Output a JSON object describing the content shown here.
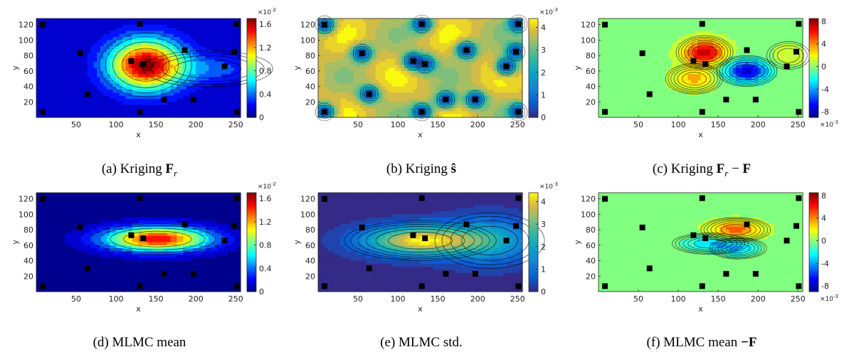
{
  "chart_data": [
    {
      "type": "heatmap",
      "id": "a",
      "caption_parts": [
        "(a) Kriging ",
        "F",
        "r",
        ""
      ],
      "xlabel": "x",
      "ylabel": "y",
      "xticks": [
        50,
        100,
        150,
        200,
        250
      ],
      "yticks": [
        20,
        40,
        60,
        80,
        100,
        120
      ],
      "xlim": [
        0,
        256
      ],
      "ylim": [
        0,
        128
      ],
      "colormap": "jet",
      "colorbar": {
        "ticks": [
          "0",
          "0.4",
          "0.8",
          "1.2",
          "1.6"
        ],
        "tick_values": [
          0,
          0.4,
          0.8,
          1.2,
          1.6
        ],
        "range": [
          0,
          1.7
        ],
        "exponent": "×10",
        "exponent_power": "-2"
      },
      "field": {
        "base": 0.08,
        "blobs": [
          {
            "x": 137,
            "y": 68,
            "sx": 32,
            "sy": 23,
            "a": 1.58
          },
          {
            "x": 215,
            "y": 63,
            "sx": 45,
            "sy": 13,
            "a": 0.28
          }
        ]
      },
      "markers": [
        [
          8,
          120
        ],
        [
          130,
          121
        ],
        [
          251,
          121
        ],
        [
          55,
          83
        ],
        [
          119,
          73
        ],
        [
          134,
          69
        ],
        [
          186,
          87
        ],
        [
          248,
          85
        ],
        [
          236,
          66
        ],
        [
          64,
          30
        ],
        [
          160,
          23
        ],
        [
          197,
          23
        ],
        [
          8,
          7
        ],
        [
          130,
          7
        ],
        [
          251,
          7
        ]
      ]
    },
    {
      "type": "heatmap",
      "id": "b",
      "caption_parts": [
        "(b) Kriging ",
        "ŝ",
        "",
        ""
      ],
      "xlabel": "x",
      "ylabel": "y",
      "xticks": [
        50,
        100,
        150,
        200,
        250
      ],
      "yticks": [
        20,
        40,
        60,
        80,
        100,
        120
      ],
      "xlim": [
        0,
        256
      ],
      "ylim": [
        0,
        128
      ],
      "colormap": "parula",
      "colorbar": {
        "ticks": [
          "0",
          "1",
          "2",
          "3",
          "4"
        ],
        "tick_values": [
          0,
          1,
          2,
          3,
          4
        ],
        "range": [
          0,
          4.4
        ],
        "exponent": "×10",
        "exponent_power": "-3"
      },
      "field": {
        "base": 3.6,
        "kriging": true
      },
      "markers": [
        [
          8,
          120
        ],
        [
          130,
          121
        ],
        [
          251,
          121
        ],
        [
          55,
          83
        ],
        [
          119,
          73
        ],
        [
          134,
          69
        ],
        [
          186,
          87
        ],
        [
          248,
          85
        ],
        [
          236,
          66
        ],
        [
          64,
          30
        ],
        [
          160,
          23
        ],
        [
          197,
          23
        ],
        [
          8,
          7
        ],
        [
          130,
          7
        ],
        [
          251,
          7
        ]
      ]
    },
    {
      "type": "heatmap",
      "id": "c",
      "caption_parts": [
        "(c) Kriging ",
        "F",
        "r",
        " − F"
      ],
      "xlabel": "x",
      "ylabel": "y",
      "xticks": [
        50,
        100,
        150,
        200,
        250
      ],
      "yticks": [
        20,
        40,
        60,
        80,
        100,
        120
      ],
      "xlim": [
        0,
        256
      ],
      "ylim": [
        0,
        128
      ],
      "colormap": "jet",
      "colorbar": {
        "ticks": [
          "8",
          "4",
          "0",
          "-4",
          "-8"
        ],
        "tick_values": [
          8,
          4,
          0,
          -4,
          -8
        ],
        "range": [
          -9,
          8.5
        ],
        "exponent": "×10",
        "exponent_power": "-3",
        "exponent_pos": "bottom"
      },
      "field": {
        "base": 0.0,
        "blobs": [
          {
            "x": 133,
            "y": 84,
            "sx": 18,
            "sy": 11,
            "a": 7.5
          },
          {
            "x": 120,
            "y": 50,
            "sx": 18,
            "sy": 10,
            "a": 3.2
          },
          {
            "x": 186,
            "y": 60,
            "sx": 19,
            "sy": 10,
            "a": -7.8
          },
          {
            "x": 238,
            "y": 80,
            "sx": 15,
            "sy": 10,
            "a": 1.2
          }
        ]
      },
      "markers": [
        [
          8,
          120
        ],
        [
          130,
          121
        ],
        [
          251,
          121
        ],
        [
          55,
          83
        ],
        [
          119,
          73
        ],
        [
          134,
          69
        ],
        [
          186,
          87
        ],
        [
          248,
          85
        ],
        [
          236,
          66
        ],
        [
          64,
          30
        ],
        [
          160,
          23
        ],
        [
          197,
          23
        ],
        [
          8,
          7
        ],
        [
          130,
          7
        ],
        [
          251,
          7
        ]
      ]
    },
    {
      "type": "heatmap",
      "id": "d",
      "caption_parts": [
        "(d) MLMC mean",
        "",
        "",
        ""
      ],
      "xlabel": "x",
      "ylabel": "y",
      "xticks": [
        50,
        100,
        150,
        200,
        250
      ],
      "yticks": [
        20,
        40,
        60,
        80,
        100,
        120
      ],
      "xlim": [
        0,
        256
      ],
      "ylim": [
        0,
        128
      ],
      "colormap": "jet",
      "colorbar": {
        "ticks": [
          "0",
          "0.4",
          "0.8",
          "1.2",
          "1.6"
        ],
        "tick_values": [
          0,
          0.4,
          0.8,
          1.2,
          1.6
        ],
        "range": [
          0,
          1.7
        ],
        "exponent": "×10",
        "exponent_power": "-2"
      },
      "field": {
        "base": 0.0,
        "plume": true,
        "blobs": [
          {
            "x": 152,
            "y": 68,
            "sx": 46,
            "sy": 11,
            "a": 1.52
          }
        ]
      },
      "markers": [
        [
          8,
          120
        ],
        [
          130,
          121
        ],
        [
          251,
          121
        ],
        [
          55,
          83
        ],
        [
          119,
          73
        ],
        [
          134,
          69
        ],
        [
          186,
          87
        ],
        [
          248,
          85
        ],
        [
          236,
          66
        ],
        [
          64,
          30
        ],
        [
          160,
          23
        ],
        [
          197,
          23
        ],
        [
          8,
          7
        ],
        [
          130,
          7
        ],
        [
          251,
          7
        ]
      ]
    },
    {
      "type": "heatmap",
      "id": "e",
      "caption_parts": [
        "(e) MLMC std.",
        "",
        "",
        ""
      ],
      "xlabel": "x",
      "ylabel": "y",
      "xticks": [
        50,
        100,
        150,
        200,
        250
      ],
      "yticks": [
        20,
        40,
        60,
        80,
        100,
        120
      ],
      "xlim": [
        0,
        256
      ],
      "ylim": [
        0,
        128
      ],
      "colormap": "parula",
      "colorbar": {
        "ticks": [
          "0",
          "1",
          "2",
          "3",
          "4"
        ],
        "tick_values": [
          0,
          1,
          2,
          3,
          4
        ],
        "range": [
          0,
          4.4
        ],
        "exponent": "×10",
        "exponent_power": "-3"
      },
      "field": {
        "base": 0.0,
        "plume": true,
        "blobs": [
          {
            "x": 128,
            "y": 66,
            "sx": 48,
            "sy": 13,
            "a": 4.3
          },
          {
            "x": 215,
            "y": 66,
            "sx": 38,
            "sy": 20,
            "a": 1.9
          }
        ]
      },
      "markers": [
        [
          8,
          120
        ],
        [
          130,
          121
        ],
        [
          251,
          121
        ],
        [
          55,
          83
        ],
        [
          119,
          73
        ],
        [
          134,
          69
        ],
        [
          186,
          87
        ],
        [
          248,
          85
        ],
        [
          236,
          66
        ],
        [
          64,
          30
        ],
        [
          160,
          23
        ],
        [
          197,
          23
        ],
        [
          8,
          7
        ],
        [
          130,
          7
        ],
        [
          251,
          7
        ]
      ]
    },
    {
      "type": "heatmap",
      "id": "f",
      "caption_parts": [
        "(f) MLMC mean ",
        "−F",
        "",
        ""
      ],
      "xlabel": "x",
      "ylabel": "y",
      "xticks": [
        50,
        100,
        150,
        200,
        250
      ],
      "yticks": [
        20,
        40,
        60,
        80,
        100,
        120
      ],
      "xlim": [
        0,
        256
      ],
      "ylim": [
        0,
        128
      ],
      "colormap": "jet",
      "colorbar": {
        "ticks": [
          "8",
          "4",
          "0",
          "-4",
          "-8"
        ],
        "tick_values": [
          8,
          4,
          0,
          -4,
          -8
        ],
        "range": [
          -9,
          8.5
        ],
        "exponent": "×10",
        "exponent_power": "-3",
        "exponent_pos": "bottom"
      },
      "field": {
        "base": 0.0,
        "blobs": [
          {
            "x": 172,
            "y": 80,
            "sx": 22,
            "sy": 8,
            "a": 4.8
          },
          {
            "x": 140,
            "y": 62,
            "sx": 24,
            "sy": 7,
            "a": -3.2
          },
          {
            "x": 175,
            "y": 56,
            "sx": 18,
            "sy": 7,
            "a": -3.0
          }
        ]
      },
      "markers": [
        [
          8,
          120
        ],
        [
          130,
          121
        ],
        [
          251,
          121
        ],
        [
          55,
          83
        ],
        [
          119,
          73
        ],
        [
          134,
          69
        ],
        [
          186,
          87
        ],
        [
          248,
          85
        ],
        [
          236,
          66
        ],
        [
          64,
          30
        ],
        [
          160,
          23
        ],
        [
          197,
          23
        ],
        [
          8,
          7
        ],
        [
          130,
          7
        ],
        [
          251,
          7
        ]
      ]
    }
  ]
}
